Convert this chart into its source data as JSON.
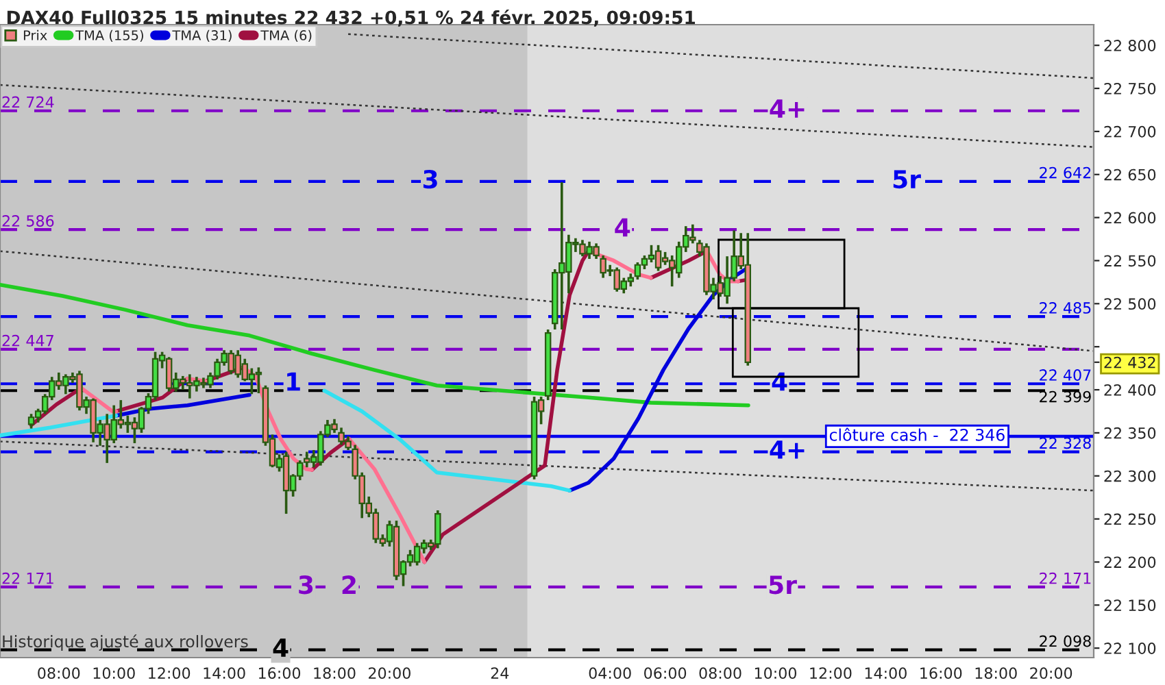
{
  "chart_data": {
    "type": "candlestick",
    "title": "DAX40 Full0325 15 minutes 22 432 +0,51 % 24 févr. 2025, 09:09:51",
    "xlim": [
      "2025-02-23T05:52",
      "2025-02-24T21:33"
    ],
    "ylim": [
      22089,
      22824
    ],
    "xticks": [
      {
        "value": "2025-02-23T08:00",
        "label": "08:00"
      },
      {
        "value": "2025-02-23T10:00",
        "label": "10:00"
      },
      {
        "value": "2025-02-23T12:00",
        "label": "12:00"
      },
      {
        "value": "2025-02-23T14:00",
        "label": "14:00"
      },
      {
        "value": "2025-02-23T16:00",
        "label": "16:00"
      },
      {
        "value": "2025-02-23T18:00",
        "label": "18:00"
      },
      {
        "value": "2025-02-23T20:00",
        "label": "20:00"
      },
      {
        "value": "2025-02-24T00:00",
        "label": "24"
      },
      {
        "value": "2025-02-24T04:00",
        "label": "04:00"
      },
      {
        "value": "2025-02-24T06:00",
        "label": "06:00"
      },
      {
        "value": "2025-02-24T08:00",
        "label": "08:00"
      },
      {
        "value": "2025-02-24T10:00",
        "label": "10:00"
      },
      {
        "value": "2025-02-24T12:00",
        "label": "12:00"
      },
      {
        "value": "2025-02-24T14:00",
        "label": "14:00"
      },
      {
        "value": "2025-02-24T16:00",
        "label": "16:00"
      },
      {
        "value": "2025-02-24T18:00",
        "label": "18:00"
      },
      {
        "value": "2025-02-24T20:00",
        "label": "20:00"
      }
    ],
    "yticks": [
      {
        "value": 22100,
        "label": "22 100"
      },
      {
        "value": 22150,
        "label": "22 150"
      },
      {
        "value": 22200,
        "label": "22 200"
      },
      {
        "value": 22250,
        "label": "22 250"
      },
      {
        "value": 22300,
        "label": "22 300"
      },
      {
        "value": 22350,
        "label": "22 350"
      },
      {
        "value": 22400,
        "label": "22 400"
      },
      {
        "value": 22432,
        "label": "22 432"
      },
      {
        "value": 22450,
        "label": null
      },
      {
        "value": 22500,
        "label": "22 500"
      },
      {
        "value": 22550,
        "label": "22 550"
      },
      {
        "value": 22600,
        "label": "22 600"
      },
      {
        "value": 22650,
        "label": "22 650"
      },
      {
        "value": 22700,
        "label": "22 700"
      },
      {
        "value": 22750,
        "label": "22 750"
      },
      {
        "value": 22800,
        "label": "22 800"
      }
    ],
    "grid": false,
    "legend": "top left",
    "bands": [
      {
        "axis": "x",
        "from": "2025-02-23T05:52",
        "to": "2025-02-24T01:00",
        "color": "#c6c6c6"
      }
    ],
    "ref_lines": [
      {
        "axis": "y",
        "value": 22724,
        "color": "#8000c8",
        "line_style": "dashed",
        "label": "22 724"
      },
      {
        "axis": "y",
        "value": 22642,
        "color": "#0000ee",
        "line_style": "dashed"
      },
      {
        "axis": "y",
        "value": 22586,
        "color": "#8000c8",
        "line_style": "dashed",
        "label": "22 586"
      },
      {
        "axis": "y",
        "value": 22485,
        "color": "#0000ee",
        "line_style": "dashed"
      },
      {
        "axis": "y",
        "value": 22447,
        "color": "#8000c8",
        "line_style": "dashed",
        "label": "22 447"
      },
      {
        "axis": "y",
        "value": 22407,
        "color": "#0000ee",
        "line_style": "dashed"
      },
      {
        "axis": "y",
        "value": 22399,
        "color": "#000000",
        "line_style": "dashed"
      },
      {
        "axis": "y",
        "value": 22346,
        "color": "#0000ee",
        "line_style": "solid",
        "label": "clôture cash -  22 346"
      },
      {
        "axis": "y",
        "value": 22328,
        "color": "#0000ee",
        "line_style": "dashed"
      },
      {
        "axis": "y",
        "value": 22171,
        "color": "#8000c8",
        "line_style": "dashed",
        "label": "22 171"
      },
      {
        "axis": "y",
        "value": 22098,
        "color": "#000000",
        "line_style": "dashed"
      }
    ],
    "annotations": [
      {
        "text": "22 642",
        "x": "2025-02-24T19:33",
        "y": 22642
      },
      {
        "text": "22 485",
        "x": "2025-02-24T19:33",
        "y": 22485
      },
      {
        "text": "22 407",
        "x": "2025-02-24T19:33",
        "y": 22407
      },
      {
        "text": "22 399",
        "x": "2025-02-24T19:33",
        "y": 22399
      },
      {
        "text": "22 328",
        "x": "2025-02-24T19:33",
        "y": 22328
      },
      {
        "text": "22 171",
        "x": "2025-02-24T19:33",
        "y": 22171
      },
      {
        "text": "22 098",
        "x": "2025-02-24T19:33",
        "y": 22098
      },
      {
        "text": "4+",
        "x": "2025-02-24T10:27",
        "y": 22724
      },
      {
        "text": "3",
        "x": "2025-02-23T21:29",
        "y": 22642
      },
      {
        "text": "5r",
        "x": "2025-02-24T14:45",
        "y": 22642
      },
      {
        "text": "4",
        "x": "2025-02-24T04:27",
        "y": 22586
      },
      {
        "text": "1",
        "x": "2025-02-23T16:30",
        "y": 22407
      },
      {
        "text": "4",
        "x": "2025-02-24T10:09",
        "y": 22407
      },
      {
        "text": "4+",
        "x": "2025-02-24T10:27",
        "y": 22328
      },
      {
        "text": "3",
        "x": "2025-02-23T16:58",
        "y": 22171
      },
      {
        "text": "2",
        "x": "2025-02-23T18:32",
        "y": 22171
      },
      {
        "text": "5r",
        "x": "2025-02-24T10:15",
        "y": 22171
      },
      {
        "text": "4",
        "x": "2025-02-23T16:03",
        "y": 22098
      },
      "Historique ajusté aux rollovers"
    ],
    "series": [
      {
        "name": "Prix",
        "x": [
          "2025-02-23T07:00",
          "2025-02-23T07:15",
          "2025-02-23T07:30",
          "2025-02-23T07:45",
          "2025-02-23T08:00",
          "2025-02-23T08:15",
          "2025-02-23T08:30",
          "2025-02-23T08:45",
          "2025-02-23T09:00",
          "2025-02-23T09:15",
          "2025-02-23T09:30",
          "2025-02-23T09:45",
          "2025-02-23T10:00",
          "2025-02-23T10:15",
          "2025-02-23T10:30",
          "2025-02-23T10:45",
          "2025-02-23T11:00",
          "2025-02-23T11:15",
          "2025-02-23T11:30",
          "2025-02-23T11:45",
          "2025-02-23T12:00",
          "2025-02-23T12:15",
          "2025-02-23T12:30",
          "2025-02-23T12:45",
          "2025-02-23T13:00",
          "2025-02-23T13:15",
          "2025-02-23T13:30",
          "2025-02-23T13:45",
          "2025-02-23T14:00",
          "2025-02-23T14:15",
          "2025-02-23T14:30",
          "2025-02-23T14:45",
          "2025-02-23T15:00",
          "2025-02-23T15:15",
          "2025-02-23T15:30",
          "2025-02-23T15:45",
          "2025-02-23T16:00",
          "2025-02-23T16:15",
          "2025-02-23T16:30",
          "2025-02-23T16:45",
          "2025-02-23T17:00",
          "2025-02-23T17:15",
          "2025-02-23T17:30",
          "2025-02-23T17:45",
          "2025-02-23T18:00",
          "2025-02-23T18:15",
          "2025-02-23T18:30",
          "2025-02-23T18:45",
          "2025-02-23T19:00",
          "2025-02-23T19:15",
          "2025-02-23T19:30",
          "2025-02-23T19:45",
          "2025-02-23T20:00",
          "2025-02-23T20:15",
          "2025-02-23T20:30",
          "2025-02-23T20:45",
          "2025-02-23T21:00",
          "2025-02-23T21:15",
          "2025-02-23T21:30",
          "2025-02-23T21:45",
          "2025-02-24T01:15",
          "2025-02-24T01:30",
          "2025-02-24T01:45",
          "2025-02-24T02:00",
          "2025-02-24T02:15",
          "2025-02-24T02:30",
          "2025-02-24T02:45",
          "2025-02-24T03:00",
          "2025-02-24T03:15",
          "2025-02-24T03:30",
          "2025-02-24T03:45",
          "2025-02-24T04:00",
          "2025-02-24T04:15",
          "2025-02-24T04:30",
          "2025-02-24T04:45",
          "2025-02-24T05:00",
          "2025-02-24T05:15",
          "2025-02-24T05:30",
          "2025-02-24T05:45",
          "2025-02-24T06:00",
          "2025-02-24T06:15",
          "2025-02-24T06:30",
          "2025-02-24T06:45",
          "2025-02-24T07:00",
          "2025-02-24T07:15",
          "2025-02-24T07:30",
          "2025-02-24T07:45",
          "2025-02-24T08:00",
          "2025-02-24T08:15",
          "2025-02-24T08:30",
          "2025-02-24T08:45",
          "2025-02-24T09:00"
        ],
        "ohlc": [
          [
            22360,
            22372,
            22355,
            22368
          ],
          [
            22368,
            22378,
            22362,
            22375
          ],
          [
            22375,
            22395,
            22372,
            22392
          ],
          [
            22392,
            22415,
            22388,
            22410
          ],
          [
            22410,
            22420,
            22400,
            22405
          ],
          [
            22405,
            22418,
            22395,
            22415
          ],
          [
            22415,
            22420,
            22408,
            22412
          ],
          [
            22418,
            22422,
            22376,
            22380
          ],
          [
            22380,
            22392,
            22372,
            22388
          ],
          [
            22388,
            22390,
            22339,
            22350
          ],
          [
            22350,
            22365,
            22335,
            22360
          ],
          [
            22360,
            22372,
            22315,
            22342
          ],
          [
            22342,
            22382,
            22338,
            22365
          ],
          [
            22365,
            22388,
            22355,
            22360
          ],
          [
            22360,
            22370,
            22350,
            22362
          ],
          [
            22362,
            22368,
            22338,
            22355
          ],
          [
            22355,
            22380,
            22350,
            22378
          ],
          [
            22378,
            22396,
            22372,
            22392
          ],
          [
            22392,
            22444,
            22388,
            22436
          ],
          [
            22434,
            22444,
            22425,
            22440
          ],
          [
            22436,
            22438,
            22398,
            22402
          ],
          [
            22402,
            22420,
            22398,
            22412
          ],
          [
            22412,
            22416,
            22400,
            22408
          ],
          [
            22408,
            22418,
            22390,
            22405
          ],
          [
            22405,
            22415,
            22398,
            22410
          ],
          [
            22408,
            22414,
            22402,
            22406
          ],
          [
            22406,
            22420,
            22402,
            22416
          ],
          [
            22416,
            22436,
            22412,
            22432
          ],
          [
            22432,
            22446,
            22428,
            22442
          ],
          [
            22442,
            22446,
            22418,
            22422
          ],
          [
            22440,
            22446,
            22414,
            22418
          ],
          [
            22430,
            22436,
            22410,
            22412
          ],
          [
            22412,
            22425,
            22395,
            22418
          ],
          [
            22418,
            22426,
            22396,
            22420
          ],
          [
            22402,
            22405,
            22335,
            22339
          ],
          [
            22343,
            22348,
            22310,
            22312
          ],
          [
            22310,
            22325,
            22305,
            22320
          ],
          [
            22323,
            22328,
            22256,
            22283
          ],
          [
            22283,
            22302,
            22276,
            22300
          ],
          [
            22300,
            22318,
            22295,
            22315
          ],
          [
            22320,
            22328,
            22310,
            22316
          ],
          [
            22316,
            22330,
            22310,
            22322
          ],
          [
            22316,
            22352,
            22312,
            22348
          ],
          [
            22348,
            22365,
            22345,
            22359
          ],
          [
            22360,
            22366,
            22350,
            22354
          ],
          [
            22350,
            22356,
            22336,
            22340
          ],
          [
            22340,
            22346,
            22330,
            22333
          ],
          [
            22331,
            22336,
            22296,
            22300
          ],
          [
            22300,
            22304,
            22251,
            22268
          ],
          [
            22268,
            22276,
            22252,
            22257
          ],
          [
            22257,
            22262,
            22222,
            22227
          ],
          [
            22227,
            22232,
            22218,
            22222
          ],
          [
            22224,
            22248,
            22218,
            22243
          ],
          [
            22241,
            22248,
            22179,
            22184
          ],
          [
            22186,
            22202,
            22172,
            22200
          ],
          [
            22200,
            22214,
            22195,
            22208
          ],
          [
            22200,
            22222,
            22196,
            22218
          ],
          [
            22216,
            22226,
            22210,
            22222
          ],
          [
            22222,
            22226,
            22214,
            22218
          ],
          [
            22221,
            22260,
            22216,
            22256
          ],
          [
            22300,
            22392,
            22296,
            22386
          ],
          [
            22388,
            22392,
            22360,
            22375
          ],
          [
            22393,
            22470,
            22388,
            22466
          ],
          [
            22477,
            22540,
            22470,
            22536
          ],
          [
            22536,
            22641,
            22470,
            22547
          ],
          [
            22537,
            22580,
            22512,
            22571
          ],
          [
            22569,
            22576,
            22560,
            22571
          ],
          [
            22569,
            22574,
            22555,
            22558
          ],
          [
            22558,
            22572,
            22552,
            22566
          ],
          [
            22566,
            22570,
            22552,
            22556
          ],
          [
            22552,
            22556,
            22530,
            22536
          ],
          [
            22538,
            22545,
            22532,
            22539
          ],
          [
            22539,
            22542,
            22514,
            22517
          ],
          [
            22517,
            22530,
            22512,
            22526
          ],
          [
            22526,
            22535,
            22520,
            22530
          ],
          [
            22532,
            22548,
            22528,
            22545
          ],
          [
            22545,
            22556,
            22540,
            22552
          ],
          [
            22552,
            22568,
            22548,
            22556
          ],
          [
            22561,
            22568,
            22538,
            22542
          ],
          [
            22553,
            22560,
            22545,
            22549
          ],
          [
            22550,
            22556,
            22520,
            22542
          ],
          [
            22536,
            22572,
            22530,
            22566
          ],
          [
            22566,
            22590,
            22560,
            22579
          ],
          [
            22577,
            22592,
            22570,
            22574
          ],
          [
            22570,
            22574,
            22555,
            22560
          ],
          [
            22566,
            22570,
            22510,
            22514
          ],
          [
            22514,
            22530,
            22505,
            22522
          ],
          [
            22524,
            22532,
            22508,
            22512
          ],
          [
            22509,
            22555,
            22500,
            22530
          ],
          [
            22530,
            22585,
            22526,
            22555
          ],
          [
            22555,
            22582,
            22540,
            22544
          ],
          [
            22545,
            22582,
            22428,
            22432
          ]
        ],
        "colors": [
          "#44dd44",
          "#44dd44",
          "#44dd44",
          "#44dd44",
          "#f08080",
          "#44dd44",
          "#f08080",
          "#f08080",
          "#44dd44",
          "#f08080",
          "#44dd44",
          "#f08080",
          "#44dd44",
          "#f08080",
          "#44dd44",
          "#f08080",
          "#44dd44",
          "#44dd44",
          "#44dd44",
          "#44dd44",
          "#f08080",
          "#44dd44",
          "#f08080",
          "#f08080",
          "#44dd44",
          "#f08080",
          "#44dd44",
          "#44dd44",
          "#44dd44",
          "#f08080",
          "#f08080",
          "#f08080",
          "#44dd44",
          "#44dd44",
          "#f08080",
          "#f08080",
          "#44dd44",
          "#f08080",
          "#44dd44",
          "#44dd44",
          "#f08080",
          "#44dd44",
          "#44dd44",
          "#44dd44",
          "#f08080",
          "#f08080",
          "#f08080",
          "#f08080",
          "#f08080",
          "#f08080",
          "#f08080",
          "#f08080",
          "#44dd44",
          "#f08080",
          "#44dd44",
          "#44dd44",
          "#44dd44",
          "#44dd44",
          "#f08080",
          "#44dd44",
          "#44dd44",
          "#f08080",
          "#44dd44",
          "#44dd44",
          "#44dd44",
          "#44dd44",
          "#44dd44",
          "#f08080",
          "#44dd44",
          "#f08080",
          "#f08080",
          "#44dd44",
          "#f08080",
          "#44dd44",
          "#44dd44",
          "#44dd44",
          "#44dd44",
          "#44dd44",
          "#f08080",
          "#f08080",
          "#f08080",
          "#44dd44",
          "#44dd44",
          "#f08080",
          "#f08080",
          "#f08080",
          "#44dd44",
          "#f08080",
          "#44dd44",
          "#44dd44",
          "#f08080",
          "#f08080"
        ]
      },
      {
        "name": "TMA (155)",
        "type": "line",
        "color": "#22cc22",
        "x": [
          "2025-02-23T05:52",
          "2025-02-23T08:08",
          "2025-02-23T10:24",
          "2025-02-23T12:40",
          "2025-02-23T14:55",
          "2025-02-23T17:11",
          "2025-02-23T19:27",
          "2025-02-23T21:43",
          "2025-02-24T03:13",
          "2025-02-24T05:29",
          "2025-02-24T09:01"
        ],
        "values": [
          22522,
          22509,
          22493,
          22475,
          22463,
          22442,
          22423,
          22405,
          22391,
          22385,
          22382
        ]
      },
      {
        "name": "TMA (31)",
        "type": "line",
        "color": "#0000dd",
        "x": [
          "2025-02-23T10:05",
          "2025-02-23T11:18",
          "2025-02-23T12:40",
          "2025-02-23T14:55",
          "2025-02-23T16:31",
          "2025-02-23T17:00",
          "2025-02-24T02:32",
          "2025-02-24T03:13",
          "2025-02-24T04:08",
          "2025-02-24T05:02",
          "2025-02-24T05:56",
          "2025-02-24T06:51",
          "2025-02-24T07:45",
          "2025-02-24T08:26",
          "2025-02-24T09:01"
        ],
        "values": [
          22370,
          22378,
          22382,
          22394,
          null,
          null,
          22283,
          22292,
          22320,
          22367,
          22423,
          22471,
          22510,
          22530,
          22542
        ]
      },
      {
        "type": "line",
        "color": "#33e0f0",
        "x": [
          "2025-02-23T05:52",
          "2025-02-23T07:41",
          "2025-02-23T10:05",
          "2025-02-23T12:00",
          "2025-02-23T16:31",
          "2025-02-23T17:38",
          "2025-02-23T19:00",
          "2025-02-23T20:21",
          "2025-02-23T21:43",
          "2025-02-24T01:52",
          "2025-02-24T02:32"
        ],
        "values": [
          22347,
          22356,
          22370,
          null,
          null,
          22399,
          22375,
          22343,
          22304,
          22288,
          22283
        ]
      },
      {
        "name": "TMA (6)",
        "type": "line",
        "color": "#a01040",
        "x": [
          "2025-02-23T07:00",
          "2025-02-23T07:55",
          "2025-02-23T08:49",
          "2025-02-23T09:24",
          "2025-02-23T10:05",
          "2025-02-23T11:46",
          "2025-02-23T12:40",
          "2025-02-23T13:00",
          "2025-02-23T13:20",
          "2025-02-23T14:42",
          "2025-02-23T15:54",
          "2025-02-23T17:11",
          "2025-02-23T17:52",
          "2025-02-23T18:32",
          "2025-02-23T19:54",
          "2025-02-23T21:16",
          "2025-02-23T21:56",
          "2025-02-24T01:38",
          "2025-02-24T02:05",
          "2025-02-24T02:32",
          "2025-02-24T03:00",
          "2025-02-24T03:13",
          "2025-02-24T04:15",
          "2025-02-24T05:29",
          "2025-02-24T06:51",
          "2025-02-24T07:31",
          "2025-02-24T08:03",
          "2025-02-24T08:39",
          "2025-02-24T09:01"
        ],
        "values": [
          22359,
          22383,
          22402,
          null,
          22375,
          22391,
          22413,
          null,
          22410,
          22426,
          null,
          22307,
          22327,
          22343,
          null,
          22200,
          22232,
          22312,
          22423,
          22510,
          22550,
          22561,
          null,
          22530,
          22550,
          22561,
          null,
          22526,
          22528
        ]
      },
      {
        "type": "line",
        "color": "#ff7090",
        "x": [
          "2025-02-23T08:49",
          "2025-02-23T09:57",
          "2025-02-23T10:05",
          "2025-02-23T11:00",
          "2025-02-23T12:40",
          "2025-02-23T13:20",
          "2025-02-23T14:00",
          "2025-02-23T14:42",
          "2025-02-23T15:09",
          "2025-02-23T15:36",
          "2025-02-23T16:03",
          "2025-02-23T16:31",
          "2025-02-23T16:58",
          "2025-02-23T17:11",
          "2025-02-23T18:00",
          "2025-02-23T18:32",
          "2025-02-23T19:27",
          "2025-02-23T20:21",
          "2025-02-23T21:16",
          "2025-02-23T22:00",
          "2025-02-24T03:13",
          "2025-02-24T04:08",
          "2025-02-24T05:02",
          "2025-02-24T05:29",
          "2025-02-24T06:15",
          "2025-02-24T07:31",
          "2025-02-24T07:59",
          "2025-02-24T08:17",
          "2025-02-24T08:39"
        ],
        "values": [
          22402,
          22375,
          22375,
          null,
          22413,
          22410,
          null,
          22426,
          22415,
          22375,
          22343,
          22320,
          22308,
          22307,
          null,
          22343,
          22308,
          22256,
          22200,
          null,
          22561,
          22550,
          22534,
          22530,
          null,
          22561,
          22534,
          22526,
          22526
        ]
      },
      {
        "type": "line",
        "color": "#333333",
        "line_style": "dotted",
        "x": [
          "2025-02-23T18:30",
          "2025-02-24T21:33"
        ],
        "values": [
          22813,
          22762
        ]
      },
      {
        "type": "line",
        "color": "#333333",
        "line_style": "dotted",
        "x": [
          "2025-02-23T05:52",
          "2025-02-24T21:33"
        ],
        "values": [
          22754,
          22682
        ]
      },
      {
        "type": "line",
        "color": "#333333",
        "line_style": "dotted",
        "x": [
          "2025-02-23T05:52",
          "2025-02-24T21:33"
        ],
        "values": [
          22561,
          22445
        ]
      },
      {
        "type": "line",
        "color": "#333333",
        "line_style": "dotted",
        "x": [
          "2025-02-23T05:52",
          "2025-02-24T21:33"
        ],
        "values": [
          22340,
          22283
        ]
      }
    ]
  }
}
